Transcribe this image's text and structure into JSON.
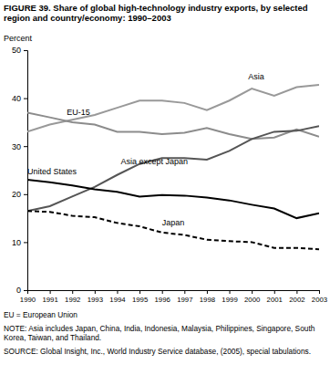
{
  "chart_data": {
    "type": "line",
    "title": "FIGURE 39. Share of global high-technology industry exports, by selected region and country/economy: 1990–2003",
    "y_label": "Percent",
    "x": [
      1990,
      1991,
      1992,
      1993,
      1994,
      1995,
      1996,
      1997,
      1998,
      1999,
      2000,
      2001,
      2002,
      2003
    ],
    "xlim": [
      1990,
      2003
    ],
    "xticks": [
      1990,
      1991,
      1992,
      1993,
      1994,
      1995,
      1996,
      1997,
      1998,
      1999,
      2000,
      2001,
      2002,
      2003
    ],
    "ylim": [
      0,
      50
    ],
    "yticks": [
      0,
      10,
      20,
      30,
      40,
      50
    ],
    "grid": false,
    "series": [
      {
        "name": "Asia",
        "color": "#999999",
        "line_style": "solid",
        "values": [
          33,
          34.5,
          35.5,
          36.5,
          38,
          39.5,
          39.5,
          39,
          37.5,
          39.5,
          42,
          40.5,
          42.3,
          42.8
        ]
      },
      {
        "name": "EU-15",
        "color": "#8c8c8c",
        "line_style": "solid",
        "values": [
          37,
          36,
          35,
          34.5,
          33,
          33,
          32.5,
          32.8,
          33.8,
          32.5,
          31.5,
          31.8,
          33.5,
          32
        ]
      },
      {
        "name": "Asia except Japan",
        "color": "#555555",
        "line_style": "solid",
        "values": [
          16.5,
          17.5,
          19.5,
          21.5,
          24,
          26.3,
          27.5,
          27.5,
          27.2,
          29,
          31.5,
          33,
          33.2,
          34.2
        ]
      },
      {
        "name": "United States",
        "color": "#000000",
        "line_style": "solid",
        "values": [
          23,
          22.5,
          21.8,
          21,
          20.5,
          19.5,
          19.8,
          19.7,
          19.3,
          18.7,
          17.8,
          17,
          15,
          16
        ]
      },
      {
        "name": "Japan",
        "color": "#000000",
        "line_style": "dashed",
        "values": [
          16.5,
          16.3,
          15.5,
          15.2,
          14,
          13.3,
          12,
          11.5,
          10.5,
          10.2,
          10,
          8.8,
          8.8,
          8.5
        ]
      }
    ],
    "annotations": [
      "EU = European Union",
      "NOTE: Asia includes Japan, China, India, Indonesia, Malaysia, Philippines, Singapore, South Korea, Taiwan, and Thailand.",
      "SOURCE: Global Insight, Inc., World Industry Service database, (2005), special tabulations."
    ]
  }
}
